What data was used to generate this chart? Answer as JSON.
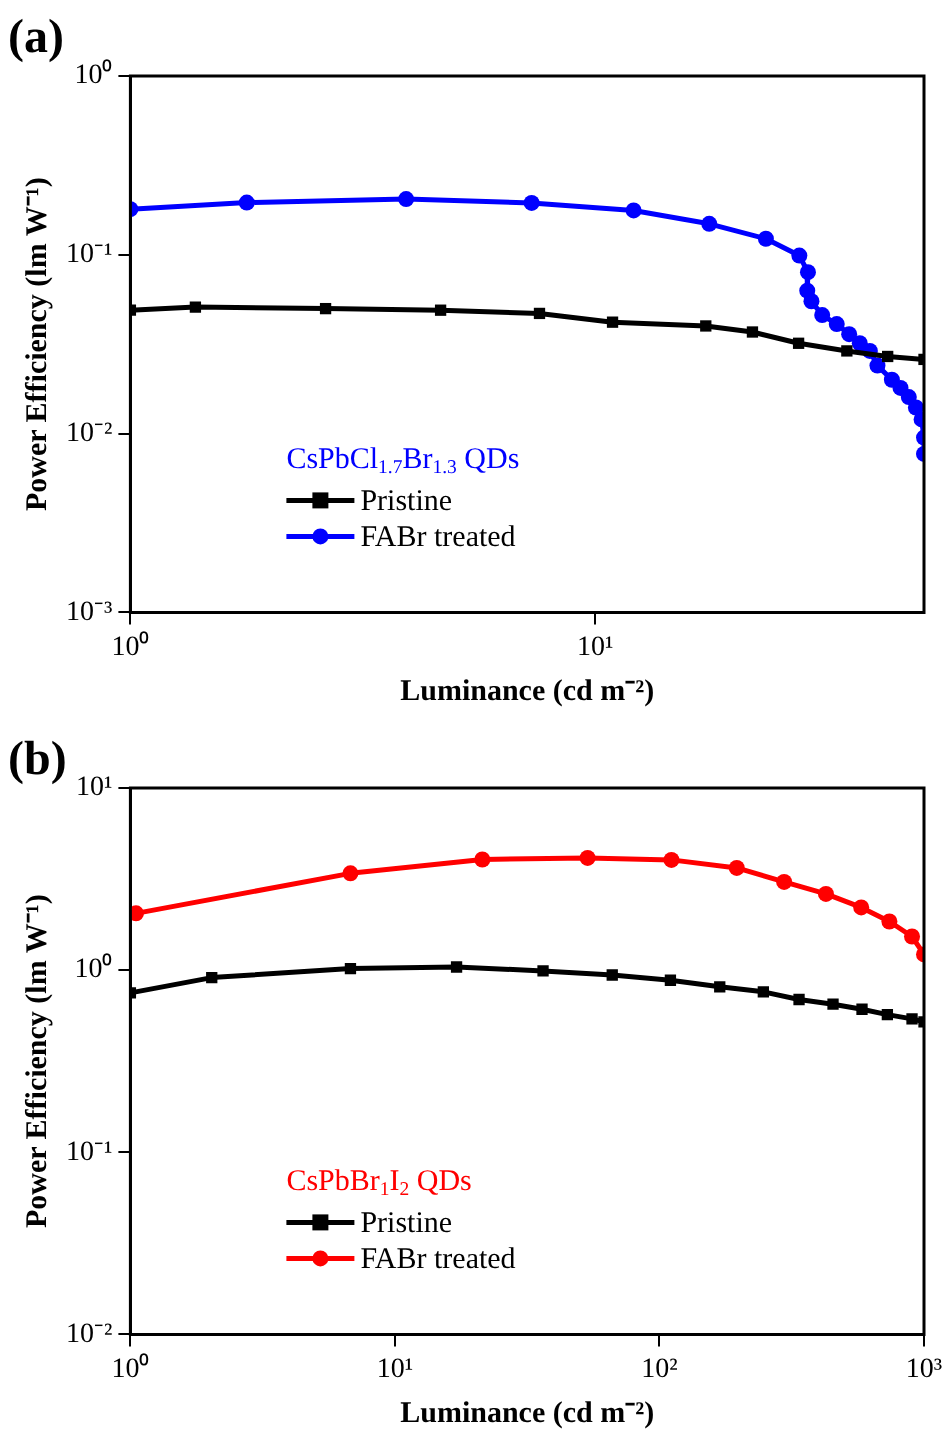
{
  "chart_data": [
    {
      "type": "line",
      "title": "(a)",
      "xlabel": "Luminance (cd m⁻²)",
      "ylabel": "Power Efficiency (lm W⁻¹)",
      "legend_title": "CsPbCl$_{1.7}$Br$_{1.3}$ QDs",
      "log": "xy",
      "grid": false,
      "legend": "bottom left",
      "line_style": "solid",
      "xlim": [
        1,
        51
      ],
      "ylim": [
        0.001,
        1
      ],
      "xticks": [
        {
          "value": 1,
          "label": "10⁰"
        },
        {
          "value": 10,
          "label": "10¹"
        }
      ],
      "yticks": [
        {
          "value": 0.001,
          "label": "10⁻³"
        },
        {
          "value": 0.01,
          "label": "10⁻²"
        },
        {
          "value": 0.1,
          "label": "10⁻¹"
        },
        {
          "value": 1,
          "label": "10⁰"
        }
      ],
      "series": [
        {
          "name": "Pristine",
          "color": "#000000",
          "marker": "square",
          "x": [
            1,
            1.38,
            2.63,
            4.65,
            7.59,
            10.9,
            17.3,
            21.8,
            27.4,
            34.8,
            42.6,
            51
          ],
          "values": [
            0.049,
            0.051,
            0.05,
            0.049,
            0.047,
            0.042,
            0.04,
            0.037,
            0.032,
            0.029,
            0.027,
            0.026
          ]
        },
        {
          "name": "FABr treated",
          "color": "#0000ff",
          "marker": "circle",
          "x": [
            1,
            1.78,
            3.92,
            7.3,
            12.1,
            17.6,
            23.3,
            27.5,
            28.7,
            28.6,
            29.2,
            30.8,
            33.1,
            35.2,
            37.1,
            39.0,
            40.5,
            43.5,
            45.4,
            47.3,
            49.0,
            50.4,
            51,
            51
          ],
          "values": [
            0.18,
            0.196,
            0.205,
            0.195,
            0.177,
            0.149,
            0.123,
            0.099,
            0.08,
            0.063,
            0.055,
            0.046,
            0.041,
            0.036,
            0.032,
            0.029,
            0.024,
            0.02,
            0.018,
            0.016,
            0.014,
            0.012,
            0.0095,
            0.0077
          ]
        }
      ]
    },
    {
      "type": "line",
      "title": "(b)",
      "xlabel": "Luminance (cd m⁻²)",
      "ylabel": "Power Efficiency (lm W⁻¹)",
      "legend_title": "CsPbBr$_{1}$I$_{2}$ QDs",
      "log": "xy",
      "grid": false,
      "legend": "bottom left",
      "line_style": "solid",
      "xlim": [
        1,
        1000
      ],
      "ylim": [
        0.01,
        10
      ],
      "xticks": [
        {
          "value": 1,
          "label": "10⁰"
        },
        {
          "value": 10,
          "label": "10¹"
        },
        {
          "value": 100,
          "label": "10²"
        },
        {
          "value": 1000,
          "label": "10³"
        }
      ],
      "yticks": [
        {
          "value": 0.01,
          "label": "10⁻²"
        },
        {
          "value": 0.1,
          "label": "10⁻¹"
        },
        {
          "value": 1,
          "label": "10⁰"
        },
        {
          "value": 10,
          "label": "10¹"
        }
      ],
      "series": [
        {
          "name": "Pristine",
          "color": "#000000",
          "marker": "square",
          "x": [
            1,
            2.03,
            6.79,
            17.1,
            36.3,
            66.3,
            110,
            169,
            247,
            337,
            453,
            583,
            727,
            901,
            1000
          ],
          "values": [
            0.75,
            0.91,
            1.02,
            1.04,
            0.99,
            0.94,
            0.88,
            0.81,
            0.76,
            0.69,
            0.65,
            0.61,
            0.57,
            0.54,
            0.52
          ]
        },
        {
          "name": "FABr treated",
          "color": "#ff0000",
          "marker": "circle",
          "x": [
            1.05,
            6.79,
            21.4,
            53.5,
            111,
            196,
            296,
            426,
            579,
            740,
            901,
            1000
          ],
          "values": [
            2.05,
            3.4,
            4.05,
            4.13,
            4.03,
            3.64,
            3.05,
            2.62,
            2.21,
            1.85,
            1.53,
            1.22
          ]
        }
      ]
    }
  ]
}
